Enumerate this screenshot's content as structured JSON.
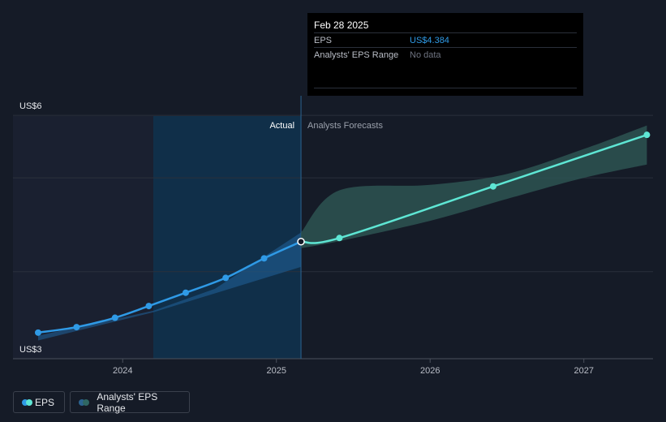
{
  "chart_data": {
    "type": "line",
    "y_ticks": [
      {
        "value": 6,
        "label": "US$6"
      },
      {
        "value": 3,
        "label": "US$3"
      }
    ],
    "x_ticks": [
      {
        "value": 2024.0,
        "label": "2024"
      },
      {
        "value": 2025.0,
        "label": "2025"
      },
      {
        "value": 2026.0,
        "label": "2026"
      },
      {
        "value": 2027.0,
        "label": "2027"
      }
    ],
    "section_labels": {
      "actual": "Actual",
      "forecast": "Analysts Forecasts"
    },
    "divider_x": 2025.16,
    "series": [
      {
        "name": "EPS",
        "kind": "actual",
        "points": [
          {
            "x": 2023.45,
            "y": 3.22
          },
          {
            "x": 2023.7,
            "y": 3.29
          },
          {
            "x": 2023.95,
            "y": 3.41
          },
          {
            "x": 2024.17,
            "y": 3.56
          },
          {
            "x": 2024.41,
            "y": 3.73
          },
          {
            "x": 2024.67,
            "y": 3.92
          },
          {
            "x": 2024.92,
            "y": 4.17
          },
          {
            "x": 2025.16,
            "y": 4.384
          }
        ]
      },
      {
        "name": "EPS Forecast",
        "kind": "forecast",
        "points": [
          {
            "x": 2025.16,
            "y": 4.384
          },
          {
            "x": 2025.41,
            "y": 4.43
          },
          {
            "x": 2026.41,
            "y": 5.09
          },
          {
            "x": 2027.41,
            "y": 5.75
          }
        ]
      },
      {
        "name": "Analysts' EPS Range",
        "kind": "band",
        "x": [
          2025.16,
          2025.41,
          2026.0,
          2026.5,
          2027.0,
          2027.41
        ],
        "upper": [
          4.5,
          5.04,
          5.11,
          5.25,
          5.57,
          5.87
        ],
        "lower": [
          4.3,
          4.39,
          4.65,
          4.93,
          5.2,
          5.37
        ]
      }
    ]
  },
  "tooltip": {
    "date": "Feb 28 2025",
    "rows": [
      {
        "label": "EPS",
        "value": "US$4.384",
        "color": "#2f9ae6"
      },
      {
        "label": "Analysts' EPS Range",
        "value": "No data",
        "color": "#6e7380"
      }
    ]
  },
  "legend": {
    "items": [
      {
        "label": "EPS",
        "color_a": "#2f9ae6",
        "color_b": "#5ee6d4"
      },
      {
        "label": "Analysts' EPS Range",
        "color_a": "#2b6491",
        "color_b": "#2f6763"
      }
    ]
  },
  "colors": {
    "background": "#151b27",
    "actual_line": "#2f9ae6",
    "forecast_line": "#5ee6d4",
    "highlight_fill": "#0f3350",
    "forecast_band": "#2d5452",
    "grid": "#2a303c"
  }
}
